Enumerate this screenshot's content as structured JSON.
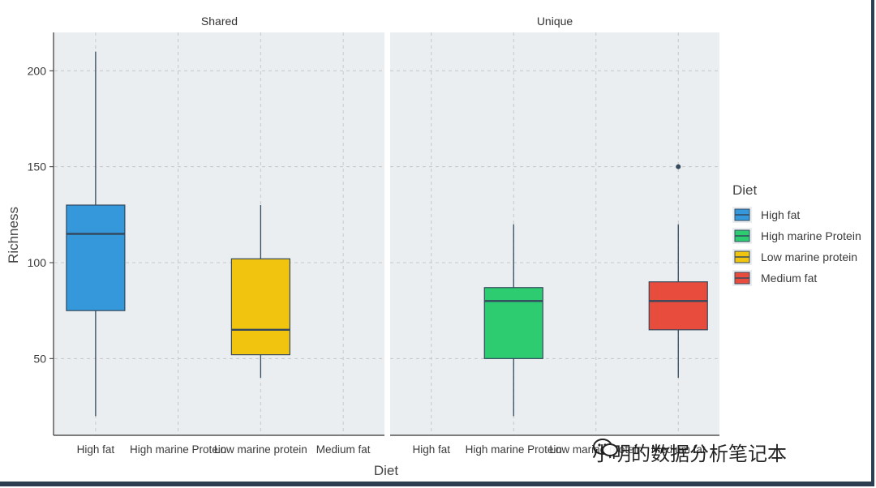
{
  "chart_data": {
    "type": "boxplot",
    "ylabel": "Richness",
    "xlabel": "Diet",
    "categories": [
      "High fat",
      "High marine Protein",
      "Low marine protein",
      "Medium fat"
    ],
    "ylim": [
      10,
      220
    ],
    "yticks": [
      50,
      100,
      150,
      200
    ],
    "grid": true,
    "legend": {
      "title": "Diet",
      "position": "right",
      "items": [
        {
          "label": "High fat",
          "color": "#3498db"
        },
        {
          "label": "High marine Protein",
          "color": "#2ecc71"
        },
        {
          "label": "Low marine protein",
          "color": "#f1c40f"
        },
        {
          "label": "Medium fat",
          "color": "#e74c3c"
        }
      ]
    },
    "facets": [
      {
        "title": "Shared",
        "boxes": [
          {
            "category": "High fat",
            "min": 20,
            "q1": 75,
            "median": 115,
            "q3": 130,
            "max": 210,
            "outliers": []
          },
          {
            "category": "Low marine protein",
            "min": 40,
            "q1": 52,
            "median": 65,
            "q3": 102,
            "max": 130,
            "outliers": []
          }
        ]
      },
      {
        "title": "Unique",
        "boxes": [
          {
            "category": "High marine Protein",
            "min": 20,
            "q1": 50,
            "median": 80,
            "q3": 87,
            "max": 120,
            "outliers": []
          },
          {
            "category": "Medium fat",
            "min": 40,
            "q1": 65,
            "median": 80,
            "q3": 90,
            "max": 120,
            "outliers": [
              150
            ]
          }
        ]
      }
    ]
  },
  "watermark": "小明的数据分析笔记本",
  "colors": {
    "panel_bg": "#ebeef0",
    "grid": "#c8c8c8",
    "box_line": "#34495e",
    "frame": "#2c3e50"
  }
}
